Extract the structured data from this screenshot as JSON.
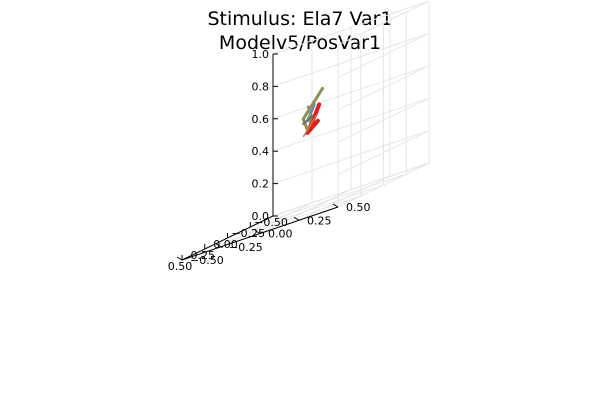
{
  "chart_data": {
    "type": "line",
    "projection": "3d",
    "title": [
      "Stimulus: Ela7 Var1",
      "Modelv5/PosVar1"
    ],
    "xlim": [
      -0.5,
      0.5
    ],
    "ylim": [
      -0.5,
      0.5
    ],
    "zlim": [
      0.0,
      1.0
    ],
    "x_ticks": [
      "−0.50",
      "−0.25",
      "0.00",
      "0.25",
      "0.50"
    ],
    "y_ticks": [
      "−0.50",
      "−0.25",
      "0.00",
      "0.25",
      "0.50"
    ],
    "z_ticks": [
      "0.0",
      "0.2",
      "0.4",
      "0.6",
      "0.8",
      "1.0"
    ],
    "grid": true,
    "legend": "none",
    "series": [
      {
        "color": "#e41a1c",
        "width": 4,
        "points": [
          [
            -0.17,
            -0.02,
            0.52
          ],
          [
            -0.02,
            0.0,
            0.48
          ],
          [
            0.0,
            0.05,
            0.55
          ],
          [
            -0.03,
            0.07,
            0.63
          ]
        ]
      },
      {
        "color": "#8b8f5a",
        "width": 3,
        "points": [
          [
            -0.05,
            0.08,
            0.72
          ],
          [
            0.06,
            0.02,
            0.58
          ],
          [
            -0.02,
            0.0,
            0.5
          ]
        ]
      },
      {
        "color": "#8b8f5a",
        "width": 3,
        "points": [
          [
            0.02,
            0.03,
            0.64
          ],
          [
            0.07,
            0.08,
            0.58
          ],
          [
            0.04,
            0.05,
            0.55
          ]
        ]
      },
      {
        "color": "#7a9e9f",
        "width": 2,
        "points": [
          [
            -0.1,
            0.0,
            0.63
          ],
          [
            0.02,
            0.02,
            0.56
          ]
        ]
      },
      {
        "color": "#6a7fb0",
        "width": 2,
        "points": [
          [
            0.07,
            0.1,
            0.65
          ],
          [
            0.02,
            0.05,
            0.6
          ]
        ]
      },
      {
        "color": "#6b6b6b",
        "width": 2,
        "points": [
          [
            -0.02,
            0.03,
            0.57
          ],
          [
            0.06,
            0.02,
            0.55
          ]
        ]
      },
      {
        "color": "#c8783c",
        "width": 1.5,
        "points": [
          [
            -0.12,
            0.0,
            0.56
          ],
          [
            0.02,
            0.0,
            0.47
          ]
        ]
      }
    ]
  }
}
